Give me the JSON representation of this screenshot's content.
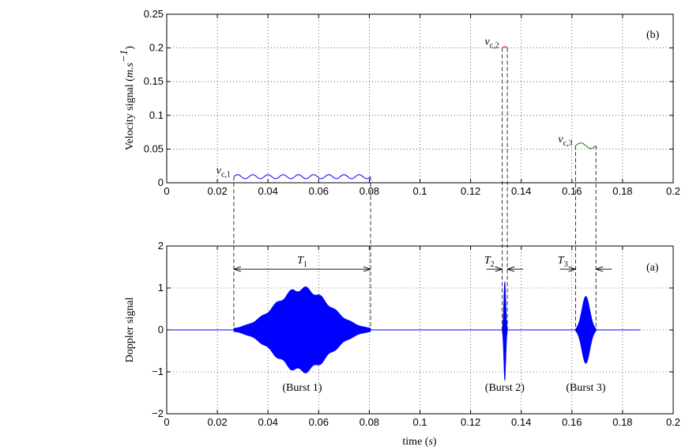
{
  "chart_data": [
    {
      "panel": "(b)",
      "type": "line",
      "ylabel": "Velocity signal",
      "ylabel_unit_base": "m.s",
      "ylabel_unit_exp": "−1",
      "xlim": [
        0,
        0.2
      ],
      "ylim": [
        0,
        0.25
      ],
      "xticks": [
        0,
        0.02,
        0.04,
        0.06,
        0.08,
        0.1,
        0.12,
        0.14,
        0.16,
        0.18,
        0.2
      ],
      "xtick_labels": [
        "0",
        "0.02",
        "0.04",
        "0.06",
        "0.08",
        "0.1",
        "0.12",
        "0.14",
        "0.16",
        "0.18",
        "0.2"
      ],
      "yticks": [
        0,
        0.05,
        0.1,
        0.15,
        0.2,
        0.25
      ],
      "ytick_labels": [
        "0",
        "0.05",
        "0.1",
        "0.15",
        "0.2",
        "0.25"
      ],
      "grid": true,
      "series": [
        {
          "label_base": "v",
          "label_sub": "c,1",
          "color": "#0000ff",
          "x_start": 0.0265,
          "x_end": 0.0805,
          "mean": 0.009,
          "amplitude": 0.003,
          "cycles": 9
        },
        {
          "label_base": "v",
          "label_sub": "c,2",
          "color": "#ff0000",
          "x_start": 0.1325,
          "x_end": 0.1345,
          "mean": 0.2,
          "amplitude": 0.002,
          "cycles": 0.5
        },
        {
          "label_base": "v",
          "label_sub": "c,3",
          "color": "#008000",
          "x_start": 0.1615,
          "x_end": 0.1695,
          "mean": 0.055,
          "amplitude": 0.004,
          "cycles": 1
        }
      ]
    },
    {
      "panel": "(a)",
      "type": "line",
      "xlabel": "time",
      "xlabel_unit": "s",
      "ylabel": "Doppler signal",
      "xlim": [
        0,
        0.2
      ],
      "ylim": [
        -2,
        2
      ],
      "xticks": [
        0,
        0.02,
        0.04,
        0.06,
        0.08,
        0.1,
        0.12,
        0.14,
        0.16,
        0.18,
        0.2
      ],
      "xtick_labels": [
        "0",
        "0.02",
        "0.04",
        "0.06",
        "0.08",
        "0.1",
        "0.12",
        "0.14",
        "0.16",
        "0.18",
        "0.2"
      ],
      "yticks": [
        -2,
        -1,
        0,
        1,
        2
      ],
      "ytick_labels": [
        "−2",
        "−1",
        "0",
        "1",
        "2"
      ],
      "grid": true,
      "signal_range": [
        0,
        0.187
      ],
      "color": "#0000ff",
      "bursts": [
        {
          "label": "(Burst 1)",
          "x_start": 0.0265,
          "x_end": 0.0805,
          "center": 0.0535,
          "peak": 0.98,
          "period_label_base": "T",
          "period_label_sub": "1"
        },
        {
          "label": "(Burst 2)",
          "x_start": 0.1325,
          "x_end": 0.1345,
          "center": 0.1335,
          "peak": 1.15,
          "period_label_base": "T",
          "period_label_sub": "2"
        },
        {
          "label": "(Burst 3)",
          "x_start": 0.1615,
          "x_end": 0.1695,
          "center": 0.1655,
          "peak": 0.8,
          "period_label_base": "T",
          "period_label_sub": "3"
        }
      ]
    }
  ]
}
